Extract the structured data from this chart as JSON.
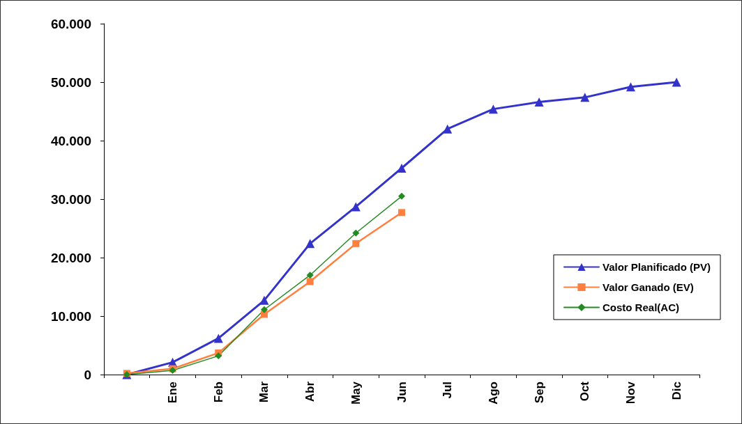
{
  "chart_data": {
    "type": "line",
    "categories": [
      null,
      "Ene",
      "Feb",
      "Mar",
      "Abr",
      "May",
      "Jun",
      "Jul",
      "Ago",
      "Sep",
      "Oct",
      "Nov",
      "Dic"
    ],
    "ylim": [
      0,
      60000
    ],
    "yticks": [
      0,
      {
        "value": 10000,
        "label": "10.000"
      },
      {
        "value": 20000,
        "label": "20.000"
      },
      {
        "value": 30000,
        "label": "30.000"
      },
      {
        "value": 40000,
        "label": "40.000"
      },
      {
        "value": 50000,
        "label": "50.000"
      },
      {
        "value": 60000,
        "label": "60.000"
      }
    ],
    "grid": false,
    "legend": "right",
    "series": [
      {
        "name": "Valor Planificado (PV)",
        "color": "#3333cc",
        "marker": "triangle",
        "values": [
          0,
          2100,
          6200,
          12700,
          22400,
          28700,
          35300,
          42000,
          45400,
          46600,
          47400,
          49200,
          50000
        ]
      },
      {
        "name": "Valor Ganado (EV)",
        "color": "#ff7f3f",
        "marker": "square",
        "values": [
          200,
          1000,
          3700,
          10300,
          15900,
          22400,
          27700,
          null,
          null,
          null,
          null,
          null,
          null
        ]
      },
      {
        "name": "Costo Real(AC)",
        "color": "#228b22",
        "marker": "diamond",
        "values": [
          0,
          700,
          3200,
          11100,
          17000,
          24200,
          30500,
          null,
          null,
          null,
          null,
          null,
          null
        ]
      }
    ]
  }
}
